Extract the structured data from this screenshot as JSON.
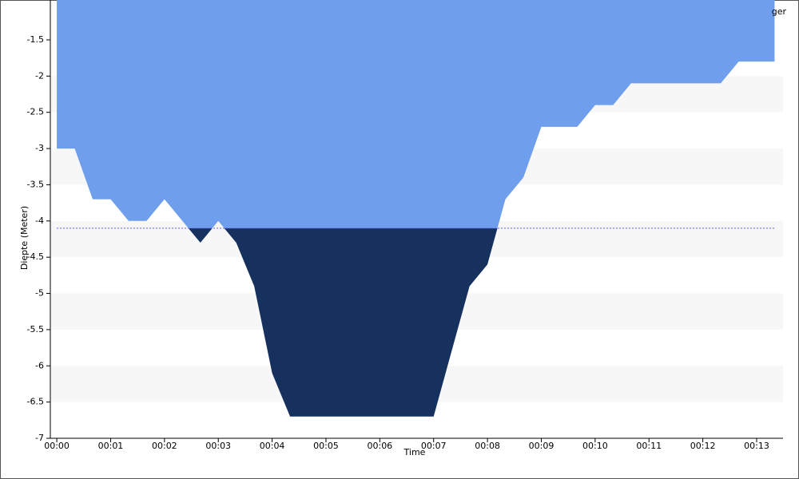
{
  "chart_data": {
    "type": "area",
    "x_label": "Time",
    "y_label": "Diepte (Meter)",
    "x": [
      0,
      0.333,
      0.667,
      1,
      1.333,
      1.667,
      2,
      2.333,
      2.667,
      3,
      3.333,
      3.667,
      4,
      4.333,
      4.667,
      5,
      5.333,
      5.667,
      6,
      6.333,
      6.667,
      7,
      7.333,
      7.667,
      8,
      8.333,
      8.667,
      9,
      9.333,
      9.667,
      10,
      10.333,
      10.667,
      11,
      11.333,
      11.667,
      12,
      12.333,
      12.667,
      13,
      13.333
    ],
    "series": [
      {
        "name": "ger",
        "color": "#6f9fec",
        "below_color": "#17315f",
        "values": [
          -3,
          -3,
          -3.7,
          -3.7,
          -4,
          -4,
          -3.7,
          -4,
          -4.3,
          -4,
          -4.3,
          -4.9,
          -6.1,
          -6.7,
          -6.7,
          -6.7,
          -6.7,
          -6.7,
          -6.7,
          -6.7,
          -6.7,
          -6.7,
          -5.8,
          -4.9,
          -4.6,
          -3.7,
          -3.4,
          -2.7,
          -2.7,
          -2.7,
          -2.4,
          -2.4,
          -2.1,
          -2.1,
          -2.1,
          -2.1,
          -2.1,
          -2.1,
          -1.8,
          -1.8,
          -1.8
        ]
      }
    ],
    "threshold": -4.1,
    "threshold_color": "#5b5bff",
    "xlim": [
      -0.12,
      13.49
    ],
    "ylim": [
      -7,
      -1
    ],
    "xticks": [
      {
        "value": 0,
        "label": "00:00"
      },
      {
        "value": 1,
        "label": "00:01"
      },
      {
        "value": 2,
        "label": "00:02"
      },
      {
        "value": 3,
        "label": "00:03"
      },
      {
        "value": 4,
        "label": "00:04"
      },
      {
        "value": 5,
        "label": "00:05"
      },
      {
        "value": 6,
        "label": "00:06"
      },
      {
        "value": 7,
        "label": "00:07"
      },
      {
        "value": 8,
        "label": "00:08"
      },
      {
        "value": 9,
        "label": "00:09"
      },
      {
        "value": 10,
        "label": "00:10"
      },
      {
        "value": 11,
        "label": "00:11"
      },
      {
        "value": 12,
        "label": "00:12"
      },
      {
        "value": 13,
        "label": "00:13"
      }
    ],
    "yticks": [
      -1.5,
      -2,
      -2.5,
      -3,
      -3.5,
      -4,
      -4.5,
      -5,
      -5.5,
      -6,
      -6.5,
      -7
    ],
    "grid": "bands"
  }
}
